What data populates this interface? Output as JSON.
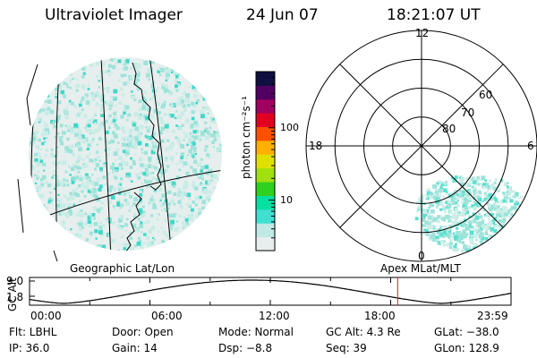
{
  "header": {
    "instrument": "Ultraviolet Imager",
    "date": "24 Jun 07",
    "time": "18:21:07 UT"
  },
  "colorbar": {
    "label": "photon cm⁻²s⁻¹",
    "ticks": [
      {
        "value": 10,
        "label": "10"
      },
      {
        "value": 100,
        "label": "100"
      }
    ],
    "range": [
      2,
      600
    ],
    "scale": "log",
    "colors": [
      "#e8eeee",
      "#c0e8e4",
      "#40e0d0",
      "#00e0a0",
      "#30d020",
      "#a0e010",
      "#e0e000",
      "#ffb000",
      "#ff5000",
      "#e00020",
      "#a00060",
      "#500060",
      "#101040"
    ]
  },
  "geo_panel": {
    "label": "Geographic Lat/Lon",
    "speckle_color": "#9ee3da"
  },
  "polar_panel": {
    "label": "Apex MLat/MLT",
    "mlt_labels": [
      {
        "key": "noon",
        "text": "12"
      },
      {
        "key": "dusk",
        "text": "18"
      },
      {
        "key": "dawn",
        "text": "6"
      },
      {
        "key": "midnight",
        "text": "0"
      }
    ],
    "lat_labels": [
      "80",
      "70",
      "60"
    ],
    "lat_values": [
      80,
      70,
      60,
      50
    ]
  },
  "altitude_plot": {
    "ylabel": "GC Alt",
    "yticks": [
      "9.0",
      "1.8"
    ],
    "y_values": [
      9.0,
      1.8
    ],
    "xticks": [
      "00:00",
      "06:00",
      "12:00",
      "18:00",
      "23:59"
    ],
    "current_time_hours": 18.35,
    "marker_color": "#cc2020"
  },
  "info": {
    "row1": [
      {
        "key": "filter",
        "text": "Flt: LBHL"
      },
      {
        "key": "door",
        "text": "Door: Open"
      },
      {
        "key": "mode",
        "text": "Mode: Normal"
      },
      {
        "key": "gc_alt",
        "text": "GC Alt: 4.3 Re"
      },
      {
        "key": "glat",
        "text": "GLat: −38.0"
      }
    ],
    "row2": [
      {
        "key": "ip",
        "text": "IP: 36.0"
      },
      {
        "key": "gain",
        "text": "Gain: 14"
      },
      {
        "key": "dsp",
        "text": "Dsp:    −8.8"
      },
      {
        "key": "seq",
        "text": "Seq: 39"
      },
      {
        "key": "glon",
        "text": "GLon: 128.9"
      }
    ]
  }
}
